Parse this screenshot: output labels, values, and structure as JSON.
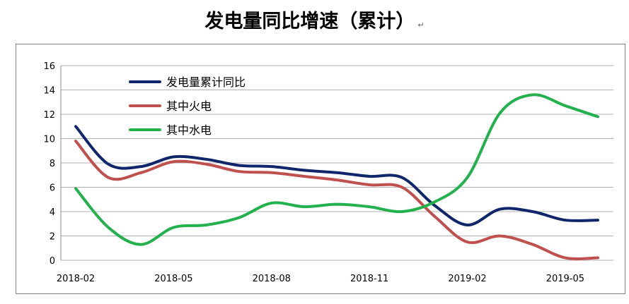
{
  "title": "发电量同比增速（累计）",
  "title_mark": "↵",
  "colors": {
    "total": "#10266b",
    "thermal": "#c0504d",
    "hydro": "#23b14d",
    "grid": "#b3b3b3"
  },
  "chart_data": {
    "type": "line",
    "title": "发电量同比增速（累计）",
    "xlabel": "",
    "ylabel": "",
    "ylim": [
      0,
      16
    ],
    "yticks": [
      0,
      2,
      4,
      6,
      8,
      10,
      12,
      14,
      16
    ],
    "grid": true,
    "legend_position": "top-left",
    "x": [
      "2018-02",
      "2018-03",
      "2018-04",
      "2018-05",
      "2018-06",
      "2018-07",
      "2018-08",
      "2018-09",
      "2018-10",
      "2018-11",
      "2018-12",
      "2019-01",
      "2019-02",
      "2019-03",
      "2019-04",
      "2019-05",
      "2019-06"
    ],
    "xtick_labels": [
      "2018-02",
      "2018-05",
      "2018-08",
      "2018-11",
      "2019-02",
      "2019-05"
    ],
    "series": [
      {
        "name": "发电量累计同比",
        "color_key": "total",
        "values": [
          11.0,
          7.9,
          7.7,
          8.5,
          8.3,
          7.8,
          7.7,
          7.4,
          7.2,
          6.9,
          6.8,
          4.5,
          2.9,
          4.2,
          4.0,
          3.3,
          3.3
        ]
      },
      {
        "name": "其中火电",
        "color_key": "thermal",
        "values": [
          9.8,
          6.8,
          7.2,
          8.1,
          7.9,
          7.3,
          7.2,
          6.9,
          6.6,
          6.2,
          6.0,
          3.6,
          1.5,
          2.0,
          1.3,
          0.2,
          0.2
        ]
      },
      {
        "name": "其中水电",
        "color_key": "hydro",
        "values": [
          5.9,
          2.7,
          1.3,
          2.7,
          2.9,
          3.5,
          4.7,
          4.4,
          4.6,
          4.4,
          4.0,
          4.8,
          6.8,
          12.1,
          13.6,
          12.7,
          11.8
        ]
      }
    ]
  }
}
